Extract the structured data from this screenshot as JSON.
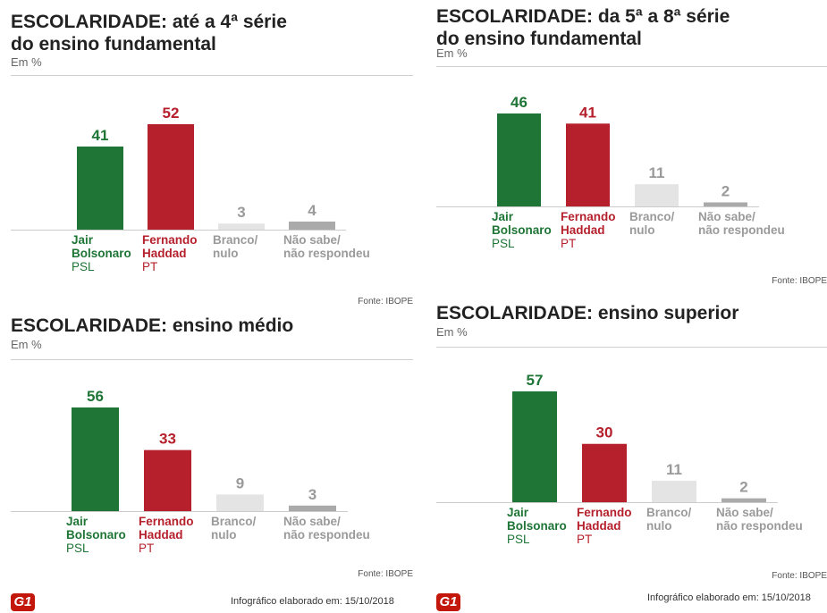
{
  "source": "Fonte: IBOPE",
  "credit": "Infográfico elaborado em: 15/10/2018",
  "logo": "G1",
  "colors": {
    "bolsonaro": "#1e7536",
    "haddad": "#b5202c",
    "branco": "#e4e4e4",
    "naosabe": "#aaaaaa",
    "label_gray": "#9a9a9a"
  },
  "subtitle": "Em %",
  "chart_data": [
    {
      "type": "bar",
      "title": "ESCOLARIDADE: até a 4ª série do ensino fundamental",
      "title_lines": [
        "ESCOLARIDADE: até a 4ª série",
        "do ensino fundamental"
      ],
      "subtitle": "Em %",
      "categories": [
        "Jair Bolsonaro",
        "Fernando Haddad",
        "Branco/ nulo",
        "Não sabe/ não respondeu"
      ],
      "category_lines": [
        [
          "Jair",
          "Bolsonaro",
          "PSL"
        ],
        [
          "Fernando",
          "Haddad",
          "PT"
        ],
        [
          "Branco/",
          "nulo"
        ],
        [
          "Não sabe/",
          "não respondeu"
        ]
      ],
      "values": [
        41,
        52,
        3,
        4
      ],
      "source": "Fonte: IBOPE"
    },
    {
      "type": "bar",
      "title": "ESCOLARIDADE: da 5ª a 8ª série do ensino fundamental",
      "title_lines": [
        "ESCOLARIDADE: da 5ª a 8ª série",
        "do ensino fundamental"
      ],
      "subtitle": "Em %",
      "categories": [
        "Jair Bolsonaro",
        "Fernando Haddad",
        "Branco/ nulo",
        "Não sabe/ não respondeu"
      ],
      "category_lines": [
        [
          "Jair",
          "Bolsonaro",
          "PSL"
        ],
        [
          "Fernando",
          "Haddad",
          "PT"
        ],
        [
          "Branco/",
          "nulo"
        ],
        [
          "Não sabe/",
          "não respondeu"
        ]
      ],
      "values": [
        46,
        41,
        11,
        2
      ],
      "source": "Fonte: IBOPE"
    },
    {
      "type": "bar",
      "title": "ESCOLARIDADE: ensino médio",
      "title_lines": [
        "ESCOLARIDADE: ensino médio"
      ],
      "subtitle": "Em %",
      "categories": [
        "Jair Bolsonaro",
        "Fernando Haddad",
        "Branco/ nulo",
        "Não sabe/ não respondeu"
      ],
      "category_lines": [
        [
          "Jair",
          "Bolsonaro",
          "PSL"
        ],
        [
          "Fernando",
          "Haddad",
          "PT"
        ],
        [
          "Branco/",
          "nulo"
        ],
        [
          "Não sabe/",
          "não respondeu"
        ]
      ],
      "values": [
        56,
        33,
        9,
        3
      ],
      "source": "Fonte: IBOPE"
    },
    {
      "type": "bar",
      "title": "ESCOLARIDADE: ensino superior",
      "title_lines": [
        "ESCOLARIDADE: ensino superior"
      ],
      "subtitle": "Em %",
      "categories": [
        "Jair Bolsonaro",
        "Fernando Haddad",
        "Branco/ nulo",
        "Não sabe/ não respondeu"
      ],
      "category_lines": [
        [
          "Jair",
          "Bolsonaro",
          "PSL"
        ],
        [
          "Fernando",
          "Haddad",
          "PT"
        ],
        [
          "Branco/",
          "nulo"
        ],
        [
          "Não sabe/",
          "não respondeu"
        ]
      ],
      "values": [
        57,
        30,
        11,
        2
      ],
      "source": "Fonte: IBOPE"
    }
  ]
}
